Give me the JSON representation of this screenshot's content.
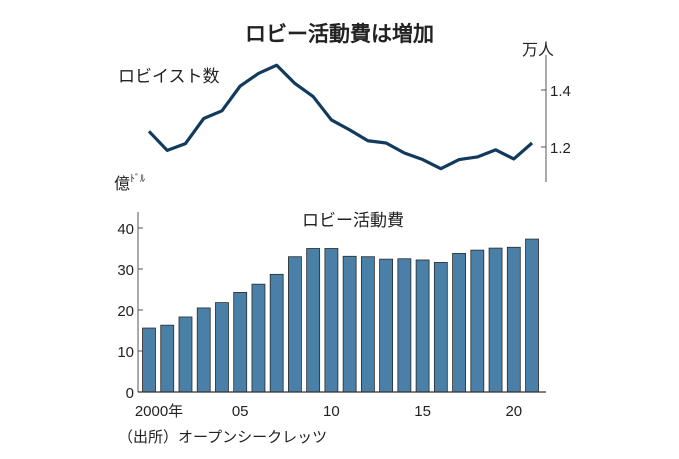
{
  "chart_data": [
    {
      "type": "line",
      "title": "ロビイスト数",
      "unit": "万人",
      "x": [
        2000,
        2001,
        2002,
        2003,
        2004,
        2005,
        2006,
        2007,
        2008,
        2009,
        2010,
        2011,
        2012,
        2013,
        2014,
        2015,
        2016,
        2017,
        2018,
        2019,
        2020,
        2021
      ],
      "values": [
        1.255,
        1.188,
        1.212,
        1.3,
        1.327,
        1.414,
        1.458,
        1.487,
        1.423,
        1.377,
        1.295,
        1.26,
        1.222,
        1.214,
        1.179,
        1.156,
        1.124,
        1.156,
        1.165,
        1.19,
        1.158,
        1.214
      ],
      "yticks": [
        "1.4",
        "1.2"
      ],
      "ytick_values": [
        1.4,
        1.2
      ],
      "color": "#123a5e"
    },
    {
      "type": "bar",
      "title": "ロビー活動費",
      "unit": "億ドル",
      "unit_main": "億",
      "unit_sup": "ﾄﾞﾙ",
      "x": [
        2000,
        2001,
        2002,
        2003,
        2004,
        2005,
        2006,
        2007,
        2008,
        2009,
        2010,
        2011,
        2012,
        2013,
        2014,
        2015,
        2016,
        2017,
        2018,
        2019,
        2020,
        2021
      ],
      "values": [
        15.6,
        16.3,
        18.3,
        20.5,
        21.8,
        24.3,
        26.3,
        28.7,
        33.0,
        35.0,
        35.0,
        33.1,
        33.0,
        32.4,
        32.5,
        32.2,
        31.6,
        33.8,
        34.6,
        35.1,
        35.3,
        37.3
      ],
      "yticks": [
        "0",
        "10",
        "20",
        "30",
        "40"
      ],
      "ytick_values": [
        0,
        10,
        20,
        30,
        40
      ],
      "xticks": [
        "2000年",
        "05",
        "10",
        "15",
        "20"
      ],
      "xtick_values": [
        2000,
        2005,
        2010,
        2015,
        2020
      ],
      "ylim": [
        0,
        45
      ],
      "color": "#4a7fa8"
    }
  ],
  "title": "ロビー活動費は増加",
  "source": "（出所）オープンシークレッツ"
}
